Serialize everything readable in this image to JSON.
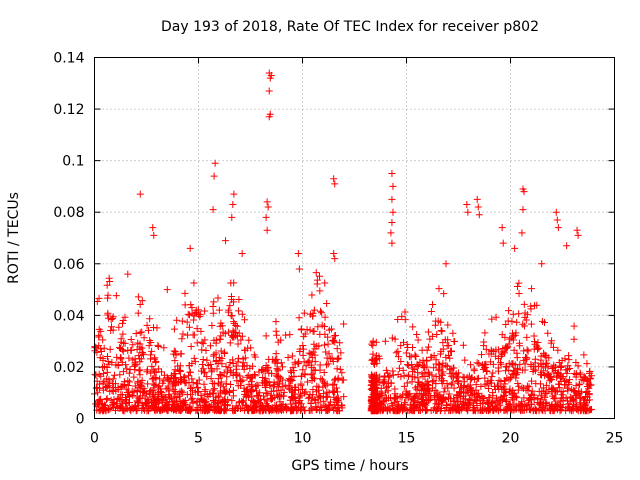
{
  "chart_data": {
    "type": "scatter",
    "title": "Day 193 of 2018, Rate Of TEC Index for receiver p802",
    "xlabel": "GPS time / hours",
    "ylabel": "ROTI / TECUs",
    "xlim": [
      0,
      25
    ],
    "ylim": [
      0,
      0.14
    ],
    "xticks": [
      0,
      5,
      10,
      15,
      20,
      25
    ],
    "yticks": [
      0,
      0.02,
      0.04,
      0.06,
      0.08,
      0.1,
      0.12,
      0.14
    ],
    "xtick_labels": [
      "0",
      "5",
      "10",
      "15",
      "20",
      "25"
    ],
    "ytick_labels": [
      "0",
      "0.02",
      "0.04",
      "0.06",
      "0.08",
      "0.1",
      "0.12",
      "0.14"
    ],
    "grid": true,
    "marker": "+",
    "color": "#ff0000",
    "data_gap_hours": [
      12.0,
      13.3
    ],
    "notable_points": [
      {
        "x": 8.4,
        "y": 0.134
      },
      {
        "x": 8.45,
        "y": 0.132
      },
      {
        "x": 8.5,
        "y": 0.133
      },
      {
        "x": 8.4,
        "y": 0.127
      },
      {
        "x": 8.45,
        "y": 0.118
      },
      {
        "x": 8.4,
        "y": 0.117
      },
      {
        "x": 5.8,
        "y": 0.099
      },
      {
        "x": 5.75,
        "y": 0.094
      },
      {
        "x": 5.7,
        "y": 0.081
      },
      {
        "x": 2.2,
        "y": 0.087
      },
      {
        "x": 2.8,
        "y": 0.074
      },
      {
        "x": 2.85,
        "y": 0.071
      },
      {
        "x": 6.7,
        "y": 0.087
      },
      {
        "x": 6.65,
        "y": 0.083
      },
      {
        "x": 6.6,
        "y": 0.078
      },
      {
        "x": 6.3,
        "y": 0.069
      },
      {
        "x": 8.3,
        "y": 0.084
      },
      {
        "x": 8.35,
        "y": 0.082
      },
      {
        "x": 8.25,
        "y": 0.078
      },
      {
        "x": 8.3,
        "y": 0.073
      },
      {
        "x": 9.8,
        "y": 0.064
      },
      {
        "x": 9.85,
        "y": 0.058
      },
      {
        "x": 11.5,
        "y": 0.093
      },
      {
        "x": 11.55,
        "y": 0.091
      },
      {
        "x": 11.5,
        "y": 0.064
      },
      {
        "x": 11.55,
        "y": 0.062
      },
      {
        "x": 14.3,
        "y": 0.095
      },
      {
        "x": 14.35,
        "y": 0.09
      },
      {
        "x": 14.3,
        "y": 0.085
      },
      {
        "x": 14.35,
        "y": 0.08
      },
      {
        "x": 14.3,
        "y": 0.076
      },
      {
        "x": 14.25,
        "y": 0.072
      },
      {
        "x": 14.3,
        "y": 0.068
      },
      {
        "x": 17.9,
        "y": 0.083
      },
      {
        "x": 17.95,
        "y": 0.08
      },
      {
        "x": 18.4,
        "y": 0.085
      },
      {
        "x": 18.45,
        "y": 0.082
      },
      {
        "x": 18.5,
        "y": 0.079
      },
      {
        "x": 19.6,
        "y": 0.074
      },
      {
        "x": 19.65,
        "y": 0.068
      },
      {
        "x": 20.6,
        "y": 0.089
      },
      {
        "x": 20.65,
        "y": 0.088
      },
      {
        "x": 20.6,
        "y": 0.081
      },
      {
        "x": 20.55,
        "y": 0.072
      },
      {
        "x": 20.2,
        "y": 0.066
      },
      {
        "x": 22.2,
        "y": 0.08
      },
      {
        "x": 22.25,
        "y": 0.077
      },
      {
        "x": 22.3,
        "y": 0.074
      },
      {
        "x": 23.2,
        "y": 0.073
      },
      {
        "x": 23.25,
        "y": 0.071
      },
      {
        "x": 22.7,
        "y": 0.067
      },
      {
        "x": 1.6,
        "y": 0.056
      },
      {
        "x": 4.6,
        "y": 0.066
      },
      {
        "x": 7.1,
        "y": 0.064
      },
      {
        "x": 3.5,
        "y": 0.05
      },
      {
        "x": 16.9,
        "y": 0.06
      },
      {
        "x": 21.5,
        "y": 0.06
      }
    ]
  }
}
